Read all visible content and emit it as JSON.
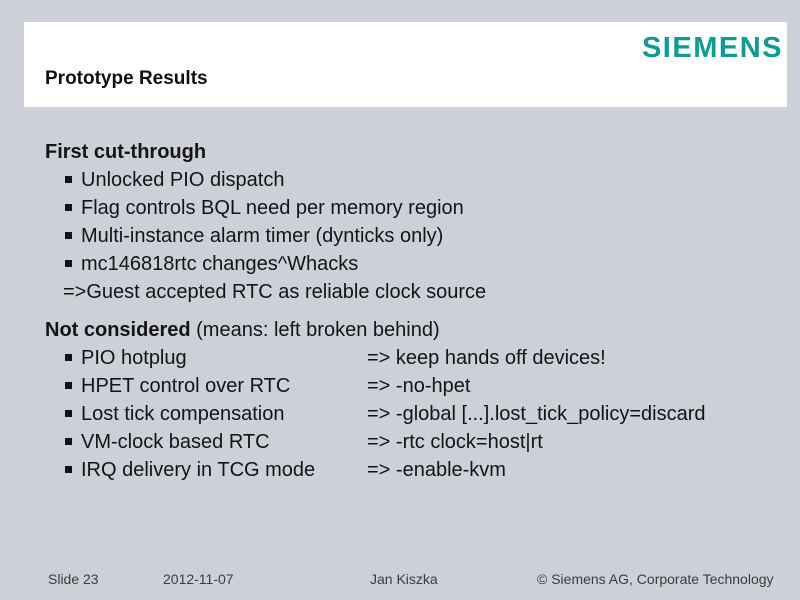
{
  "colors": {
    "page_bg": "#cdd0d8",
    "band_bg": "#ffffff",
    "logo": "#0f9b94",
    "text": "#141414",
    "footer": "#3c3c3c"
  },
  "header": {
    "logo": "SIEMENS",
    "title": "Prototype Results"
  },
  "section1": {
    "heading": "First cut-through",
    "bullets": [
      "Unlocked PIO dispatch",
      "Flag controls BQL need per memory region",
      "Multi-instance alarm timer (dynticks only)",
      "mc146818rtc changes^Whacks"
    ],
    "conclusion": "=>Guest accepted RTC as reliable clock source"
  },
  "section2": {
    "heading": "Not considered",
    "heading_note": " (means: left broken behind)",
    "items": [
      {
        "label": "PIO hotplug",
        "result": "=> keep hands off devices!"
      },
      {
        "label": "HPET control over RTC",
        "result": "=> -no-hpet"
      },
      {
        "label": "Lost tick compensation",
        "result": "=> -global [...].lost_tick_policy=discard"
      },
      {
        "label": "VM-clock based RTC",
        "result": "=> -rtc clock=host|rt"
      },
      {
        "label": "IRQ delivery in TCG mode",
        "result": "=> -enable-kvm"
      }
    ]
  },
  "footer": {
    "slide_number": "Slide 23",
    "date": "2012-11-07",
    "author": "Jan Kiszka",
    "copyright": "© Siemens AG, Corporate Technology"
  }
}
